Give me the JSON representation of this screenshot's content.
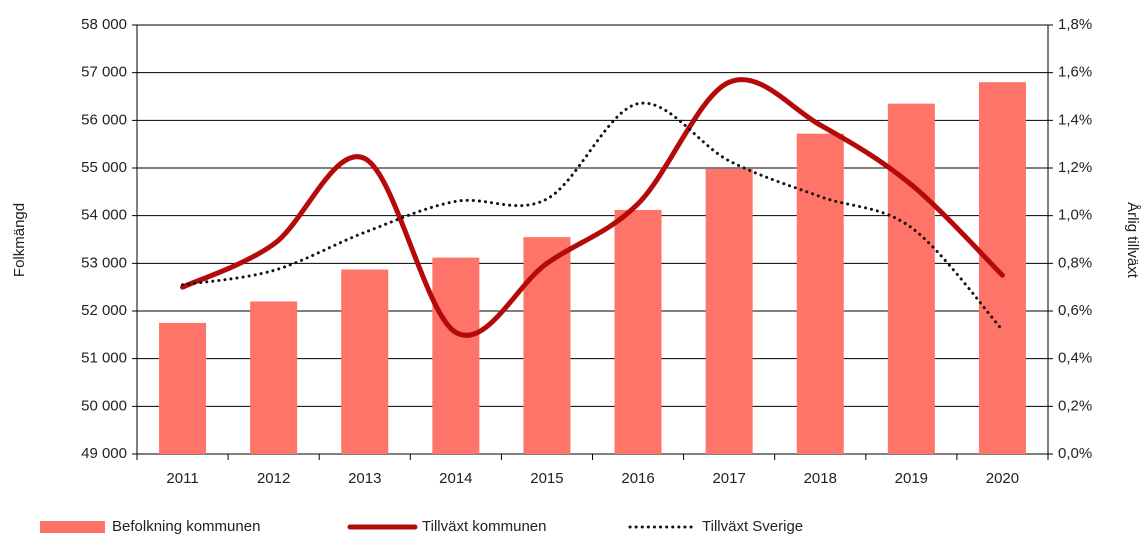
{
  "chart_data": {
    "type": "bar_line",
    "categories": [
      "2011",
      "2012",
      "2013",
      "2014",
      "2015",
      "2016",
      "2017",
      "2018",
      "2019",
      "2020"
    ],
    "ylabel": "Folkmängd",
    "y2label": "Årlig tillväxt",
    "ylim": [
      49000,
      58000
    ],
    "yticks": [
      {
        "value": 49000,
        "label": "49 000"
      },
      {
        "value": 50000,
        "label": "50 000"
      },
      {
        "value": 51000,
        "label": "51 000"
      },
      {
        "value": 52000,
        "label": "52 000"
      },
      {
        "value": 53000,
        "label": "53 000"
      },
      {
        "value": 54000,
        "label": "54 000"
      },
      {
        "value": 55000,
        "label": "55 000"
      },
      {
        "value": 56000,
        "label": "56 000"
      },
      {
        "value": 57000,
        "label": "57 000"
      },
      {
        "value": 58000,
        "label": "58 000"
      }
    ],
    "y2lim": [
      0,
      1.8
    ],
    "y2ticks": [
      {
        "value": 0,
        "label": "0,0%"
      },
      {
        "value": 0.2,
        "label": "0,2%"
      },
      {
        "value": 0.4,
        "label": "0,4%"
      },
      {
        "value": 0.6,
        "label": "0,6%"
      },
      {
        "value": 0.8,
        "label": "0,8%"
      },
      {
        "value": 1.0,
        "label": "1,0%"
      },
      {
        "value": 1.2,
        "label": "1,2%"
      },
      {
        "value": 1.4,
        "label": "1,4%"
      },
      {
        "value": 1.6,
        "label": "1,6%"
      },
      {
        "value": 1.8,
        "label": "1,8%"
      }
    ],
    "grid": true,
    "series": [
      {
        "name": "Befolkning kommunen",
        "type": "bar",
        "color": "#ff7468",
        "values": [
          51750,
          52200,
          52870,
          53120,
          53550,
          54120,
          54980,
          55720,
          56350,
          56800
        ]
      },
      {
        "name": "Tillväxt kommunen",
        "type": "line",
        "axis": "y2",
        "color": "#b40a0a",
        "style": "solid",
        "values": [
          0.7,
          0.88,
          1.24,
          0.51,
          0.8,
          1.05,
          1.56,
          1.38,
          1.13,
          0.75
        ]
      },
      {
        "name": "Tillväxt Sverige",
        "type": "line",
        "axis": "y2",
        "color": "#111111",
        "style": "dotted",
        "values": [
          0.71,
          0.77,
          0.93,
          1.06,
          1.07,
          1.47,
          1.23,
          1.08,
          0.95,
          0.52
        ]
      }
    ]
  }
}
